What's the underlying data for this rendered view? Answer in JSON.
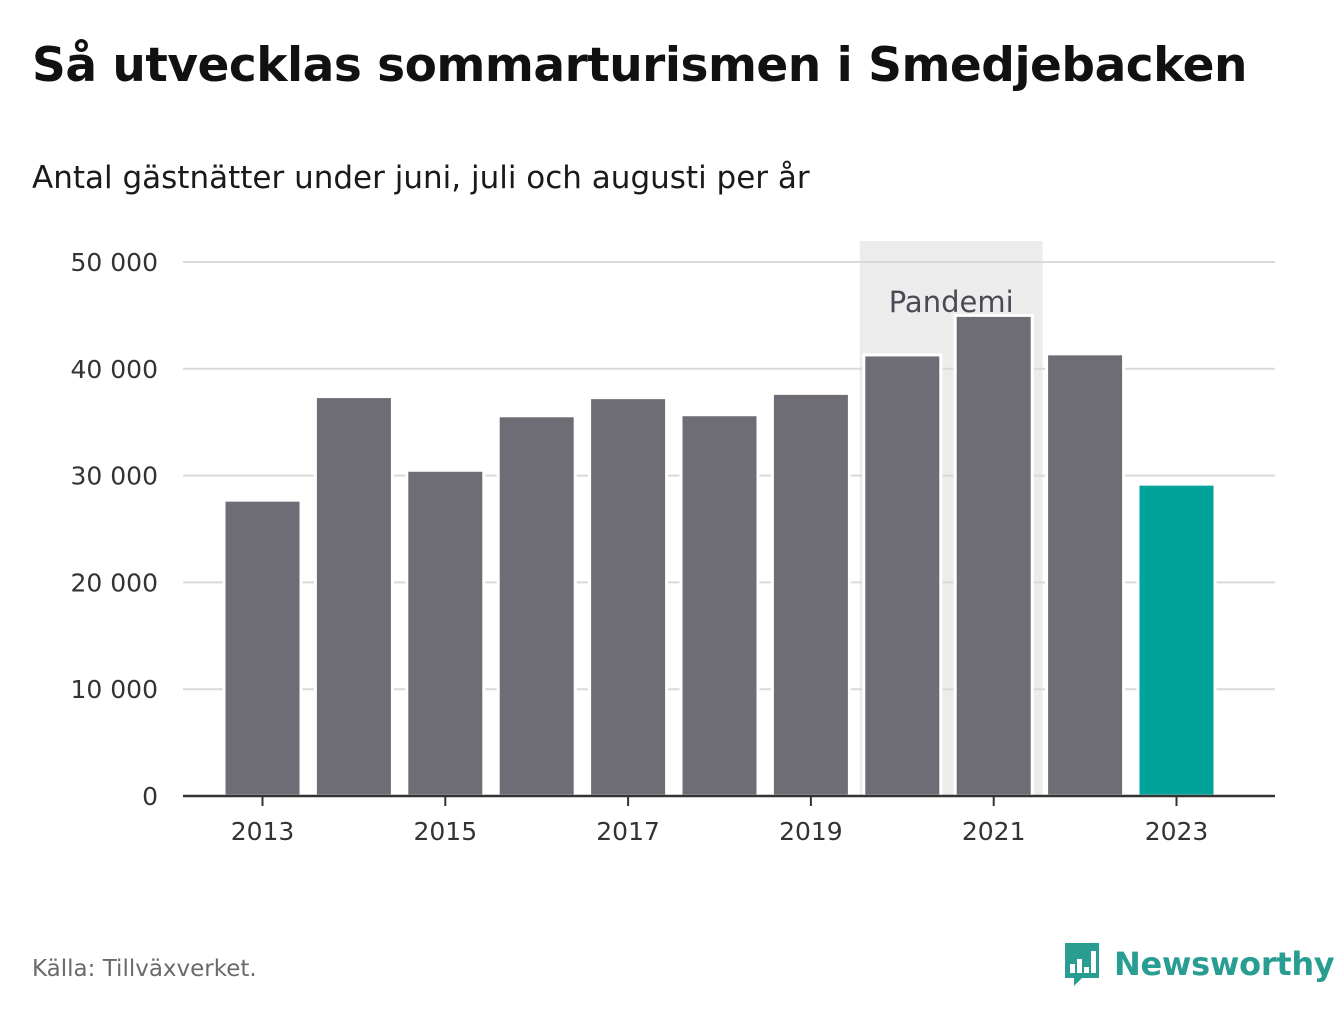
{
  "title": "Så utvecklas sommarturismen i Smedjebacken",
  "subtitle": "Antal gästnätter under juni, juli och augusti per år",
  "source": "Källa: Tillväxverket.",
  "brand": {
    "name": "Newsworthy",
    "icon": "newsworthy-logo-icon",
    "color": "#2a9d92"
  },
  "colors": {
    "bar": "#6e6d75",
    "highlight": "#00a39a",
    "band": "#ececec",
    "grid": "#d9d9d9",
    "axis": "#333333"
  },
  "chart_data": {
    "type": "bar",
    "categories": [
      "2013",
      "2014",
      "2015",
      "2016",
      "2017",
      "2018",
      "2019",
      "2020",
      "2021",
      "2022",
      "2023"
    ],
    "values": [
      27700,
      37400,
      30500,
      35600,
      37300,
      35700,
      37700,
      41300,
      45000,
      41400,
      29200
    ],
    "highlight_category": "2023",
    "x_tick_labels": [
      "2013",
      "2015",
      "2017",
      "2019",
      "2021",
      "2023"
    ],
    "y_ticks": [
      0,
      10000,
      20000,
      30000,
      40000,
      50000
    ],
    "y_tick_labels": [
      "0",
      "10 000",
      "20 000",
      "30 000",
      "40 000",
      "50 000"
    ],
    "ylim": [
      0,
      50000
    ],
    "grid": true,
    "annotations": [
      {
        "label": "Pandemi",
        "from": "2020",
        "to": "2021"
      }
    ]
  }
}
